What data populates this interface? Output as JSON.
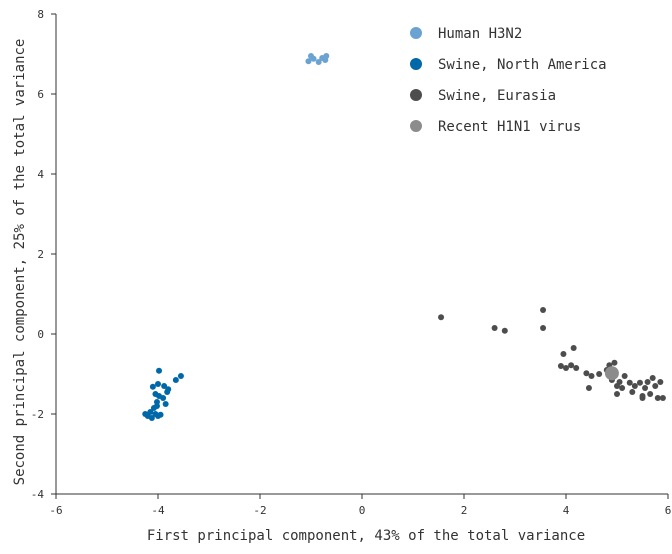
{
  "chart_data": {
    "type": "scatter",
    "title": "",
    "xlabel": "First principal component, 43% of the total variance",
    "ylabel": "Second principal component, 25% of the total variance",
    "xlim": [
      -6,
      6
    ],
    "ylim": [
      -4,
      8
    ],
    "xticks": [
      -6,
      -4,
      -2,
      0,
      2,
      4,
      6
    ],
    "yticks": [
      -4,
      -2,
      0,
      2,
      4,
      6,
      8
    ],
    "grid": false,
    "legend_position": "top-right",
    "series": [
      {
        "name": "Human H3N2",
        "color": "#6aa2d2",
        "marker_size": "small",
        "points": [
          [
            -1.05,
            6.82
          ],
          [
            -1.0,
            6.95
          ],
          [
            -0.95,
            6.88
          ],
          [
            -0.85,
            6.8
          ],
          [
            -0.78,
            6.9
          ],
          [
            -0.72,
            6.85
          ],
          [
            -0.7,
            6.95
          ]
        ]
      },
      {
        "name": "Swine, North America",
        "color": "#0068a8",
        "marker_size": "small",
        "points": [
          [
            -4.25,
            -2.0
          ],
          [
            -4.2,
            -2.05
          ],
          [
            -4.15,
            -1.95
          ],
          [
            -4.12,
            -2.1
          ],
          [
            -4.08,
            -1.85
          ],
          [
            -4.05,
            -2.0
          ],
          [
            -4.02,
            -1.7
          ],
          [
            -4.0,
            -2.05
          ],
          [
            -3.98,
            -1.55
          ],
          [
            -3.95,
            -2.02
          ],
          [
            -4.1,
            -1.32
          ],
          [
            -4.05,
            -1.5
          ],
          [
            -3.9,
            -1.6
          ],
          [
            -3.88,
            -1.3
          ],
          [
            -3.85,
            -1.75
          ],
          [
            -3.82,
            -1.45
          ],
          [
            -3.8,
            -1.38
          ],
          [
            -3.65,
            -1.15
          ],
          [
            -3.55,
            -1.05
          ],
          [
            -3.98,
            -0.92
          ],
          [
            -4.02,
            -1.8
          ],
          [
            -4.0,
            -1.25
          ]
        ]
      },
      {
        "name": "Swine, Eurasia",
        "color": "#4d4d4d",
        "marker_size": "small",
        "points": [
          [
            1.55,
            0.42
          ],
          [
            2.6,
            0.15
          ],
          [
            2.8,
            0.08
          ],
          [
            3.55,
            0.6
          ],
          [
            3.55,
            0.15
          ],
          [
            3.95,
            -0.5
          ],
          [
            4.0,
            -0.85
          ],
          [
            4.1,
            -0.78
          ],
          [
            4.15,
            -0.35
          ],
          [
            4.2,
            -0.85
          ],
          [
            3.9,
            -0.8
          ],
          [
            4.4,
            -0.98
          ],
          [
            4.45,
            -1.35
          ],
          [
            4.5,
            -1.05
          ],
          [
            4.65,
            -1.0
          ],
          [
            4.85,
            -0.78
          ],
          [
            4.9,
            -1.15
          ],
          [
            4.95,
            -0.72
          ],
          [
            5.0,
            -1.3
          ],
          [
            5.0,
            -1.5
          ],
          [
            5.05,
            -1.2
          ],
          [
            5.1,
            -1.35
          ],
          [
            5.15,
            -1.05
          ],
          [
            5.25,
            -1.22
          ],
          [
            5.3,
            -1.45
          ],
          [
            5.35,
            -1.3
          ],
          [
            5.45,
            -1.22
          ],
          [
            5.5,
            -1.6
          ],
          [
            5.55,
            -1.35
          ],
          [
            5.6,
            -1.2
          ],
          [
            5.65,
            -1.5
          ],
          [
            5.7,
            -1.1
          ],
          [
            5.75,
            -1.3
          ],
          [
            5.8,
            -1.6
          ],
          [
            5.85,
            -1.2
          ],
          [
            5.9,
            -1.6
          ],
          [
            4.8,
            -0.9
          ],
          [
            5.5,
            -1.55
          ]
        ]
      },
      {
        "name": "Recent H1N1 virus",
        "color": "#8c8c8c",
        "marker_size": "large",
        "points": [
          [
            4.9,
            -0.98
          ]
        ]
      }
    ]
  }
}
